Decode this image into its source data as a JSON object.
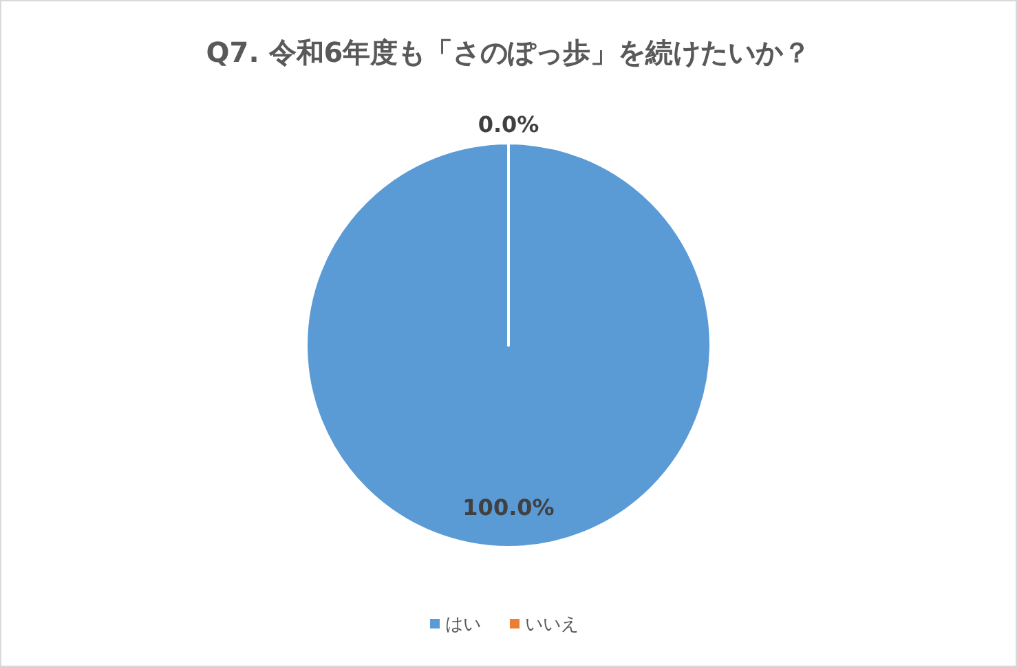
{
  "chart_data": {
    "type": "pie",
    "title": "Q7. 令和6年度も「さのぽっ歩」を続けたいか？",
    "categories": [
      "はい",
      "いいえ"
    ],
    "values": [
      100,
      0
    ],
    "colors": [
      "#5b9bd5",
      "#ed7d31"
    ],
    "value_labels": [
      "100.0%",
      "0.0%"
    ],
    "legend": "bottom"
  }
}
